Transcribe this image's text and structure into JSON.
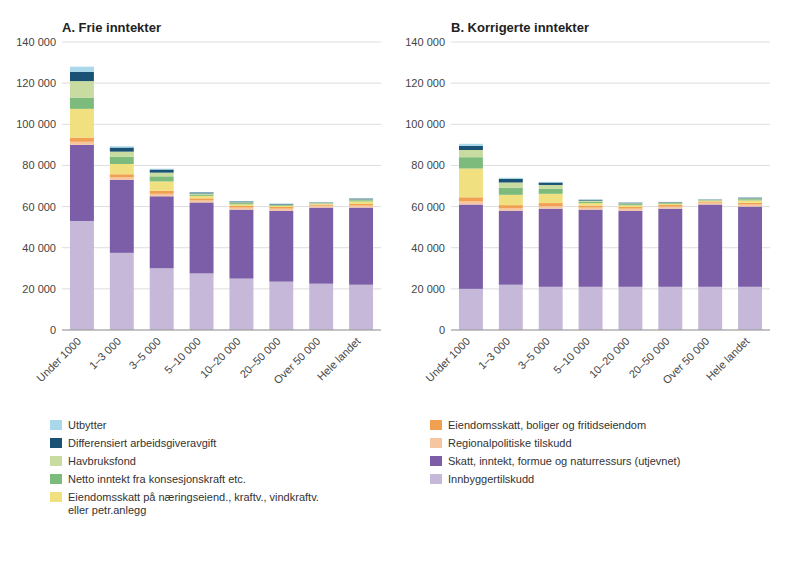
{
  "chart_data": [
    {
      "type": "bar",
      "stacked": true,
      "grid": true,
      "legend": "bottom",
      "title": "A. Frie inntekter",
      "categories": [
        "Under 1000",
        "1–3 000",
        "3–5 000",
        "5–10 000",
        "10–20 000",
        "20–50 000",
        "Over 50 000",
        "Hele landet"
      ],
      "ylim": [
        0,
        140000
      ],
      "yticks": [
        0,
        {
          "value": 20000,
          "label": "20 000"
        },
        {
          "value": 40000,
          "label": "40 000"
        },
        {
          "value": 60000,
          "label": "60 000"
        },
        {
          "value": 80000,
          "label": "80 000"
        },
        {
          "value": 100000,
          "label": "100 000"
        },
        {
          "value": 120000,
          "label": "120 000"
        },
        {
          "value": 140000,
          "label": "140 000"
        }
      ],
      "series": [
        {
          "name": "Innbyggertilskudd",
          "color": "#c5b8d8",
          "values": [
            53000,
            37500,
            30000,
            27500,
            25000,
            23500,
            22500,
            22000
          ]
        },
        {
          "name": "Skatt, inntekt, formue og naturressurs (utjevnet)",
          "color": "#7b5ea7",
          "values": [
            37000,
            35500,
            35000,
            34500,
            33500,
            34500,
            37000,
            37500
          ]
        },
        {
          "name": "Regionalpolitiske tilskudd",
          "color": "#f5c6a0",
          "values": [
            1500,
            1200,
            1200,
            1000,
            1000,
            1000,
            900,
            1000
          ]
        },
        {
          "name": "Eiendomsskatt, boliger og fritidseiendom",
          "color": "#f0a050",
          "values": [
            2000,
            1500,
            1500,
            1000,
            800,
            800,
            600,
            800
          ]
        },
        {
          "name": "Eiendomsskatt på næringseiend., kraftv., vindkraftv.\neller petr.anlegg",
          "color": "#f0e080",
          "values": [
            14000,
            5000,
            4500,
            1200,
            800,
            500,
            300,
            1200
          ]
        },
        {
          "name": "Netto inntekt fra konsesjonskraft etc.",
          "color": "#7dbb7d",
          "values": [
            5500,
            3500,
            2500,
            700,
            600,
            400,
            300,
            600
          ]
        },
        {
          "name": "Havbruksfond",
          "color": "#c8dba0",
          "values": [
            8000,
            2500,
            1800,
            500,
            400,
            300,
            200,
            400
          ]
        },
        {
          "name": "Differensiert arbeidsgiveravgift",
          "color": "#1a5276",
          "values": [
            4500,
            2000,
            1500,
            500,
            400,
            300,
            200,
            400
          ]
        },
        {
          "name": "Utbytter",
          "color": "#a8d8ea",
          "values": [
            2500,
            600,
            400,
            200,
            150,
            150,
            100,
            200
          ]
        }
      ]
    },
    {
      "type": "bar",
      "stacked": true,
      "grid": true,
      "title": "B. Korrigerte inntekter",
      "categories": [
        "Under 1000",
        "1–3 000",
        "3–5 000",
        "5–10 000",
        "10–20 000",
        "20–50 000",
        "Over 50 000",
        "Hele landet"
      ],
      "ylim": [
        0,
        140000
      ],
      "yticks": [
        0,
        {
          "value": 20000,
          "label": "20 000"
        },
        {
          "value": 40000,
          "label": "40 000"
        },
        {
          "value": 60000,
          "label": "60 000"
        },
        {
          "value": 80000,
          "label": "80 000"
        },
        {
          "value": 100000,
          "label": "100 000"
        },
        {
          "value": 120000,
          "label": "120 000"
        },
        {
          "value": 140000,
          "label": "140 000"
        }
      ],
      "series": [
        {
          "name": "Innbyggertilskudd",
          "color": "#c5b8d8",
          "values": [
            20000,
            22000,
            21000,
            21000,
            21000,
            21000,
            21000,
            21000
          ]
        },
        {
          "name": "Skatt, inntekt, formue og naturressurs (utjevnet)",
          "color": "#7b5ea7",
          "values": [
            41000,
            36000,
            38000,
            37500,
            37000,
            38000,
            40000,
            39000
          ]
        },
        {
          "name": "Regionalpolitiske tilskudd",
          "color": "#f5c6a0",
          "values": [
            1500,
            1200,
            1200,
            1000,
            1000,
            1000,
            900,
            1000
          ]
        },
        {
          "name": "Eiendomsskatt, boliger og fritidseiendom",
          "color": "#f0a050",
          "values": [
            2000,
            1500,
            1500,
            1000,
            800,
            800,
            600,
            800
          ]
        },
        {
          "name": "Eiendomsskatt på næringseiend., kraftv., vindkraftv.\neller petr.anlegg",
          "color": "#f0e080",
          "values": [
            14000,
            5000,
            4500,
            1200,
            800,
            500,
            300,
            1200
          ]
        },
        {
          "name": "Netto inntekt fra konsesjonskraft etc.",
          "color": "#7dbb7d",
          "values": [
            5500,
            3500,
            2500,
            700,
            600,
            400,
            300,
            600
          ]
        },
        {
          "name": "Havbruksfond",
          "color": "#c8dba0",
          "values": [
            3500,
            2500,
            1800,
            500,
            400,
            300,
            200,
            400
          ]
        },
        {
          "name": "Differensiert arbeidsgiveravgift",
          "color": "#1a5276",
          "values": [
            2000,
            1800,
            1200,
            400,
            300,
            200,
            150,
            350
          ]
        },
        {
          "name": "Utbytter",
          "color": "#a8d8ea",
          "values": [
            1000,
            500,
            300,
            200,
            150,
            100,
            100,
            200
          ]
        }
      ]
    }
  ]
}
